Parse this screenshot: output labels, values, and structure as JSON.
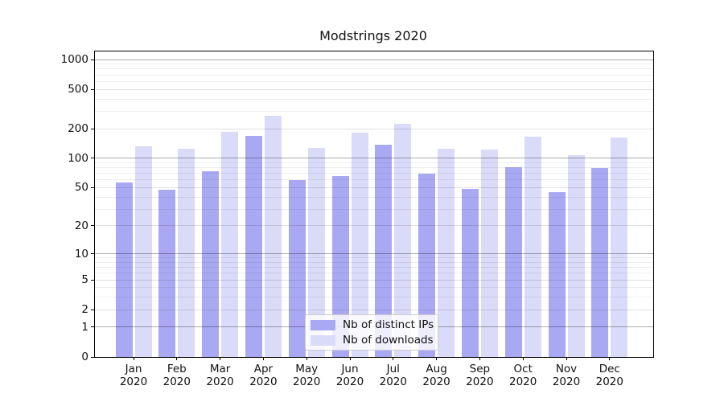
{
  "chart_data": {
    "type": "bar",
    "title": "Modstrings 2020",
    "categories": [
      "Jan 2020",
      "Feb 2020",
      "Mar 2020",
      "Apr 2020",
      "May 2020",
      "Jun 2020",
      "Jul 2020",
      "Aug 2020",
      "Sep 2020",
      "Oct 2020",
      "Nov 2020",
      "Dec 2020"
    ],
    "series": [
      {
        "name": "Nb of distinct IPs",
        "color": "#a9a9f3",
        "values": [
          57,
          48,
          74,
          170,
          60,
          66,
          137,
          70,
          49,
          81,
          45,
          80
        ]
      },
      {
        "name": "Nb of downloads",
        "color": "#dadaf9",
        "values": [
          132,
          125,
          185,
          270,
          127,
          181,
          223,
          124,
          123,
          166,
          107,
          163
        ]
      }
    ],
    "xlabel": "",
    "ylabel": "",
    "yscale": "log1p",
    "ylim": [
      0,
      1200
    ],
    "yticks": [
      0,
      1,
      2,
      5,
      10,
      20,
      50,
      100,
      200,
      500,
      1000
    ],
    "grid": "both",
    "grid_major_ticks": [
      1,
      10,
      100,
      1000
    ],
    "grid_mid_ticks": [
      2,
      5,
      20,
      50,
      200,
      500
    ],
    "grid_minor_ticks": [
      3,
      4,
      6,
      7,
      8,
      9,
      30,
      40,
      60,
      70,
      80,
      90,
      300,
      400,
      600,
      700,
      800,
      900
    ],
    "legend_position": "lower center"
  },
  "legend": {
    "items": [
      {
        "label": "Nb of distinct IPs"
      },
      {
        "label": "Nb of downloads"
      }
    ]
  }
}
